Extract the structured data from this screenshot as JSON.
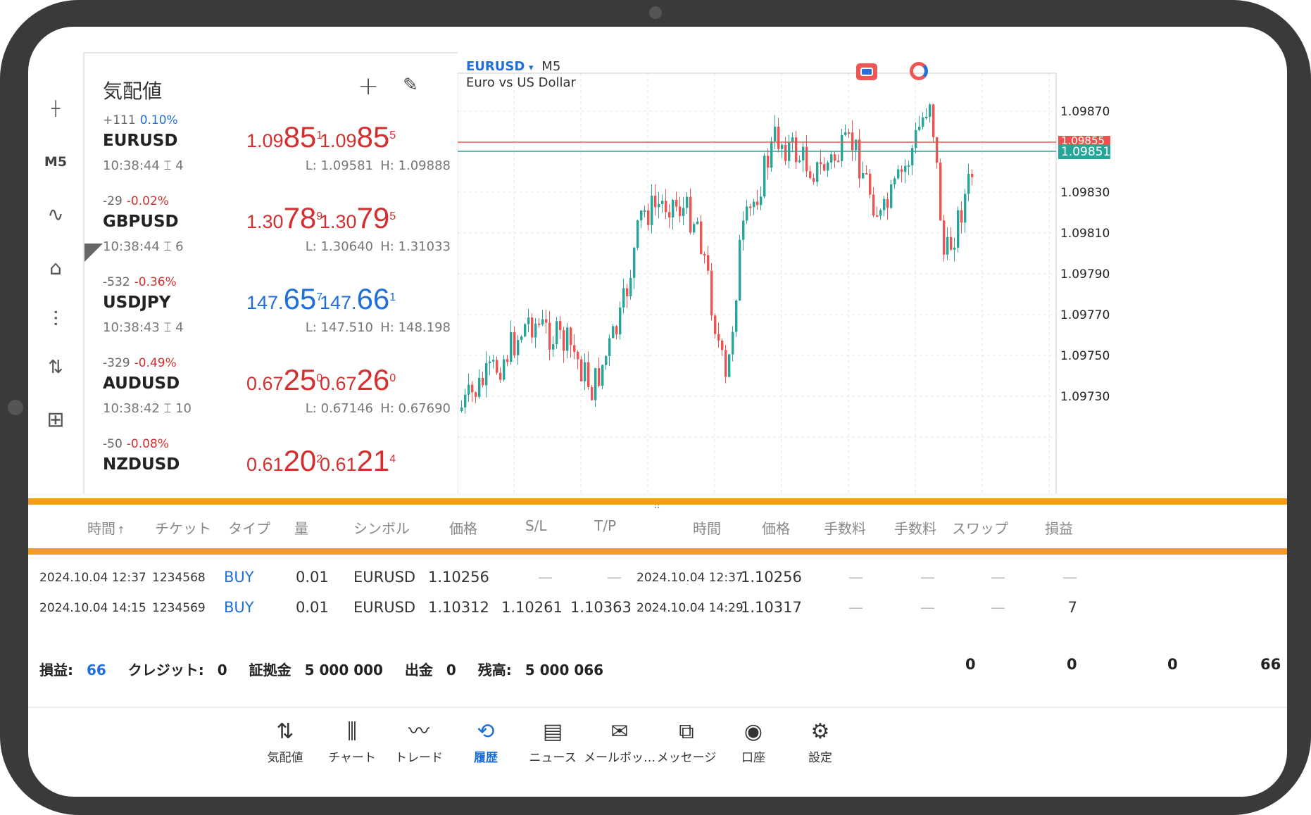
{
  "rail": {
    "items": [
      {
        "icon": "crosshair-icon",
        "glyph": "┼"
      },
      {
        "icon": "timeframe",
        "glyph": "M5"
      },
      {
        "icon": "indicators-icon",
        "glyph": "∿"
      },
      {
        "icon": "objects-icon",
        "glyph": "⌂"
      },
      {
        "icon": "settings-sliders-icon",
        "glyph": "⫶"
      },
      {
        "icon": "trade-arrows-icon",
        "glyph": "⇅"
      },
      {
        "icon": "add-file-icon",
        "glyph": "⊞"
      }
    ]
  },
  "quotes": {
    "title": "気配値",
    "add_glyph": "+",
    "edit_glyph": "✎",
    "rows": [
      {
        "change": "+111",
        "pct": "0.10%",
        "pct_color": "#1e6fd9",
        "symbol": "EURUSD",
        "time": "10:38:44 ⌶ 4",
        "bid_small": "1.09",
        "bid_big": "85",
        "bid_sup": "1",
        "ask_small": "1.09",
        "ask_big": "85",
        "ask_sup": "5",
        "price_color": "#d32f2f",
        "low": "L: 1.09581",
        "high": "H: 1.09888"
      },
      {
        "change": "-29",
        "pct": "-0.02%",
        "pct_color": "#d32f2f",
        "symbol": "GBPUSD",
        "time": "10:38:44 ⌶ 6",
        "bid_small": "1.30",
        "bid_big": "78",
        "bid_sup": "9",
        "ask_small": "1.30",
        "ask_big": "79",
        "ask_sup": "5",
        "price_color": "#d32f2f",
        "low": "L: 1.30640",
        "high": "H: 1.31033"
      },
      {
        "change": "-532",
        "pct": "-0.36%",
        "pct_color": "#d32f2f",
        "symbol": "USDJPY",
        "time": "10:38:43 ⌶ 4",
        "bid_small": "147.",
        "bid_big": "65",
        "bid_sup": "7",
        "ask_small": "147.",
        "ask_big": "66",
        "ask_sup": "1",
        "price_color": "#1e6fd9",
        "low": "L: 147.510",
        "high": "H: 148.198"
      },
      {
        "change": "-329",
        "pct": "-0.49%",
        "pct_color": "#d32f2f",
        "symbol": "AUDUSD",
        "time": "10:38:42 ⌶ 10",
        "bid_small": "0.67",
        "bid_big": "25",
        "bid_sup": "0",
        "ask_small": "0.67",
        "ask_big": "26",
        "ask_sup": "0",
        "price_color": "#d32f2f",
        "low": "L: 0.67146",
        "high": "H: 0.67690"
      },
      {
        "change": "-50",
        "pct": "-0.08%",
        "pct_color": "#d32f2f",
        "symbol": "NZDUSD",
        "time": "",
        "bid_small": "0.61",
        "bid_big": "20",
        "bid_sup": "2",
        "ask_small": "0.61",
        "ask_big": "21",
        "ask_sup": "4",
        "price_color": "#d32f2f",
        "low": "",
        "high": ""
      }
    ]
  },
  "chart": {
    "symbol": "EURUSD",
    "dropdown": "▾",
    "timeframe": "M5",
    "description": "Euro vs US Dollar",
    "price_labels": [
      "1.09870",
      "1.09830",
      "1.09810",
      "1.09790",
      "1.09770",
      "1.09750",
      "1.09730"
    ],
    "ask_label": "1.09855",
    "bid_label": "1.09851",
    "colors": {
      "up": "#26a69a",
      "down": "#ef5350",
      "ask_line": "#ef5350",
      "bid_line": "#26a69a"
    }
  },
  "history": {
    "headers": [
      "時間",
      "チケット",
      "タイプ",
      "量",
      "シンボル",
      "価格",
      "S/L",
      "T/P",
      "時間",
      "価格",
      "手数料",
      "手数料",
      "スワップ",
      "損益"
    ],
    "sort_arrow": "↑",
    "rows": [
      {
        "open_time": "2024.10.04 12:37",
        "ticket": "1234568",
        "type": "BUY",
        "volume": "0.01",
        "symbol": "EURUSD",
        "price": "1.10256",
        "sl": "—",
        "tp": "—",
        "close_time": "2024.10.04 12:37",
        "close_price": "1.10256",
        "commission": "—",
        "fee": "—",
        "swap": "—",
        "profit": "—"
      },
      {
        "open_time": "2024.10.04 14:15",
        "ticket": "1234569",
        "type": "BUY",
        "volume": "0.01",
        "symbol": "EURUSD",
        "price": "1.10312",
        "sl": "1.10261",
        "tp": "1.10363",
        "close_time": "2024.10.04 14:29",
        "close_price": "1.10317",
        "commission": "—",
        "fee": "—",
        "swap": "—",
        "profit": "7"
      }
    ],
    "summary": {
      "profit_label": "損益:",
      "profit_value": "66",
      "credit_label": "クレジット:",
      "credit_value": "0",
      "deposit_label": "証拠金",
      "deposit_value": "5 000 000",
      "withdraw_label": "出金",
      "withdraw_value": "0",
      "balance_label": "残高:",
      "balance_value": "5 000 066",
      "commission_total": "0",
      "fee_total": "0",
      "swap_total": "0",
      "profit_total": "66"
    }
  },
  "nav": {
    "items": [
      {
        "label": "気配値",
        "glyph": "⇅",
        "icon": "quotes-icon"
      },
      {
        "label": "チャート",
        "glyph": "⫼",
        "icon": "chart-icon"
      },
      {
        "label": "トレード",
        "glyph": "〰",
        "icon": "trade-icon"
      },
      {
        "label": "履歴",
        "glyph": "⟲",
        "icon": "history-icon"
      },
      {
        "label": "ニュース",
        "glyph": "▤",
        "icon": "news-icon"
      },
      {
        "label": "メールボッ…",
        "glyph": "✉",
        "icon": "mailbox-icon"
      },
      {
        "label": "メッセージ",
        "glyph": "⧉",
        "icon": "messages-icon"
      },
      {
        "label": "口座",
        "glyph": "◉",
        "icon": "account-icon"
      },
      {
        "label": "設定",
        "glyph": "⚙",
        "icon": "settings-icon"
      }
    ],
    "active": "履歴"
  }
}
